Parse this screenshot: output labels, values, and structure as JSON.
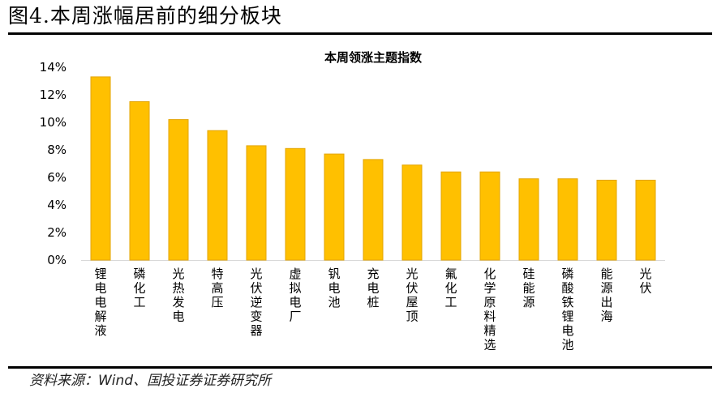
{
  "figure": {
    "title": "图4.本周涨幅居前的细分板块",
    "source": "资料来源：Wind、国投证券证券研究所"
  },
  "colors": {
    "bar": "#FFC000",
    "bar_stroke": "#E3A400",
    "axis": "#D9D9D9"
  },
  "chart_data": {
    "type": "bar",
    "title": "本周领涨主题指数",
    "categories": [
      "锂电电解液",
      "磷化工",
      "光热发电",
      "特高压",
      "光伏逆变器",
      "虚拟电厂",
      "钒电池",
      "充电桩",
      "光伏屋顶",
      "氟化工",
      "化学原料精选",
      "硅能源",
      "磷酸铁锂电池",
      "能源出海",
      "光伏"
    ],
    "values": [
      13.3,
      11.5,
      10.2,
      9.4,
      8.3,
      8.1,
      7.7,
      7.3,
      6.9,
      6.4,
      6.4,
      5.9,
      5.9,
      5.8,
      5.8
    ],
    "unit": "%",
    "yticks": [
      "0%",
      "2%",
      "4%",
      "6%",
      "8%",
      "10%",
      "12%",
      "14%"
    ],
    "ylim": [
      0,
      14
    ],
    "xlabel": "",
    "ylabel": "",
    "grid": false,
    "legend": "none"
  }
}
